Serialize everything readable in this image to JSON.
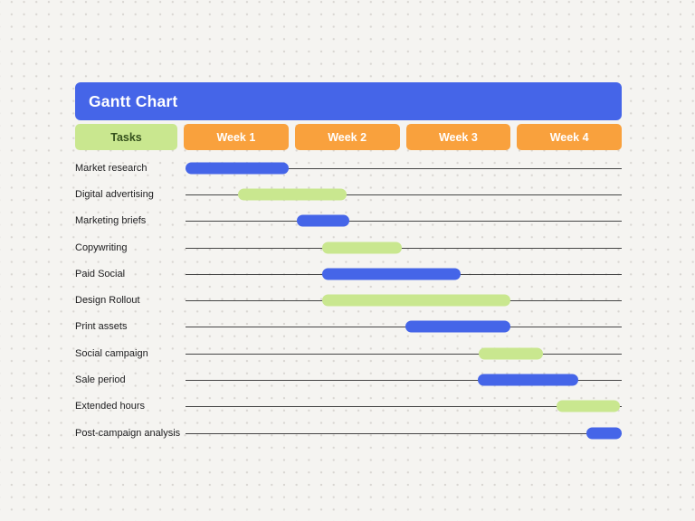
{
  "page": {
    "background": "#f5f4f1"
  },
  "colors": {
    "blue": "#4565e8",
    "green": "#c9e78f",
    "orange": "#f9a13d",
    "tasks_text": "#35511d",
    "track_line": "#454545"
  },
  "header": {
    "title": "Gantt Chart",
    "tasks_label": "Tasks",
    "week_labels": [
      "Week 1",
      "Week 2",
      "Week 3",
      "Week 4"
    ]
  },
  "chart_data": {
    "type": "bar",
    "variant": "gantt",
    "title": "Gantt Chart",
    "x_unit": "weeks",
    "x_range": [
      0,
      4
    ],
    "columns": [
      "Week 1",
      "Week 2",
      "Week 3",
      "Week 4"
    ],
    "grid": false,
    "tasks": [
      {
        "label": "Market research",
        "start_week": 0.0,
        "end_week": 0.95,
        "color": "blue"
      },
      {
        "label": "Digital advertising",
        "start_week": 0.48,
        "end_week": 1.48,
        "color": "green"
      },
      {
        "label": "Marketing briefs",
        "start_week": 1.02,
        "end_week": 1.5,
        "color": "blue"
      },
      {
        "label": "Copywriting",
        "start_week": 1.25,
        "end_week": 1.98,
        "color": "green"
      },
      {
        "label": "Paid Social",
        "start_week": 1.25,
        "end_week": 2.52,
        "color": "blue"
      },
      {
        "label": "Design Rollout",
        "start_week": 1.25,
        "end_week": 2.98,
        "color": "green"
      },
      {
        "label": "Print assets",
        "start_week": 2.02,
        "end_week": 2.98,
        "color": "blue"
      },
      {
        "label": "Social campaign",
        "start_week": 2.69,
        "end_week": 3.28,
        "color": "green"
      },
      {
        "label": "Sale period",
        "start_week": 2.68,
        "end_week": 3.6,
        "color": "blue"
      },
      {
        "label": "Extended hours",
        "start_week": 3.4,
        "end_week": 3.98,
        "color": "green"
      },
      {
        "label": "Post-campaign analysis",
        "start_week": 3.68,
        "end_week": 4.0,
        "color": "blue"
      }
    ]
  }
}
